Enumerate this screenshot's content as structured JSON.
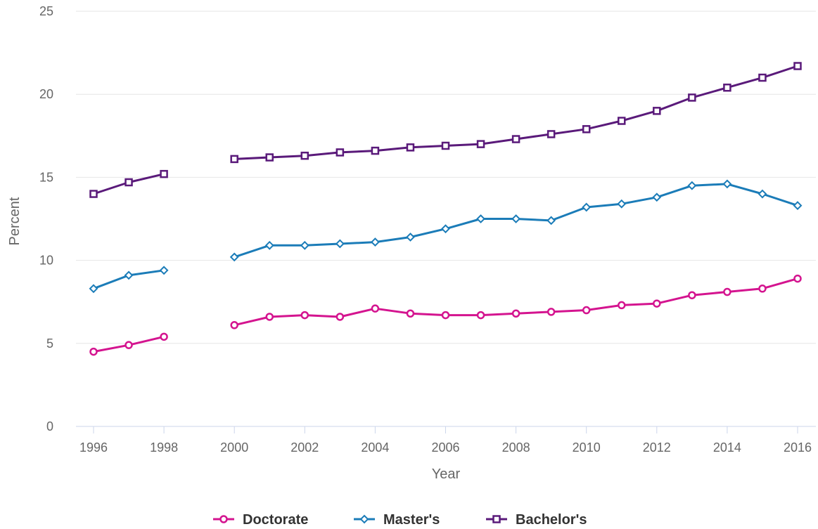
{
  "chart_data": {
    "type": "line",
    "title": "",
    "xlabel": "Year",
    "ylabel": "Percent",
    "x": [
      1996,
      1997,
      1998,
      1999,
      2000,
      2001,
      2002,
      2003,
      2004,
      2005,
      2006,
      2007,
      2008,
      2009,
      2010,
      2011,
      2012,
      2013,
      2014,
      2015,
      2016
    ],
    "x_ticks": [
      "1996",
      "1998",
      "2000",
      "2002",
      "2004",
      "2006",
      "2008",
      "2010",
      "2012",
      "2014",
      "2016"
    ],
    "y_ticks": [
      "0",
      "5",
      "10",
      "15",
      "20",
      "25"
    ],
    "ylim": [
      0,
      25
    ],
    "xlim": [
      1996,
      2016
    ],
    "grid": "horizontal",
    "legend_position": "bottom",
    "series": [
      {
        "name": "Doctorate",
        "color": "#d4148f",
        "marker": "circle",
        "values": [
          4.5,
          4.9,
          5.4,
          null,
          6.1,
          6.6,
          6.7,
          6.6,
          7.1,
          6.8,
          6.7,
          6.7,
          6.8,
          6.9,
          7.0,
          7.3,
          7.4,
          7.9,
          8.1,
          8.3,
          8.9
        ]
      },
      {
        "name": "Master's",
        "color": "#1b7cb8",
        "marker": "diamond",
        "values": [
          8.3,
          9.1,
          9.4,
          null,
          10.2,
          10.9,
          10.9,
          11.0,
          11.1,
          11.4,
          11.9,
          12.5,
          12.5,
          12.4,
          13.2,
          13.4,
          13.8,
          14.5,
          14.6,
          14.0,
          13.3
        ]
      },
      {
        "name": "Bachelor's",
        "color": "#5a1a7a",
        "marker": "square",
        "values": [
          14.0,
          14.7,
          15.2,
          null,
          16.1,
          16.2,
          16.3,
          16.5,
          16.6,
          16.8,
          16.9,
          17.0,
          17.3,
          17.6,
          17.9,
          18.4,
          19.0,
          19.8,
          20.4,
          21.0,
          21.7
        ]
      }
    ]
  }
}
